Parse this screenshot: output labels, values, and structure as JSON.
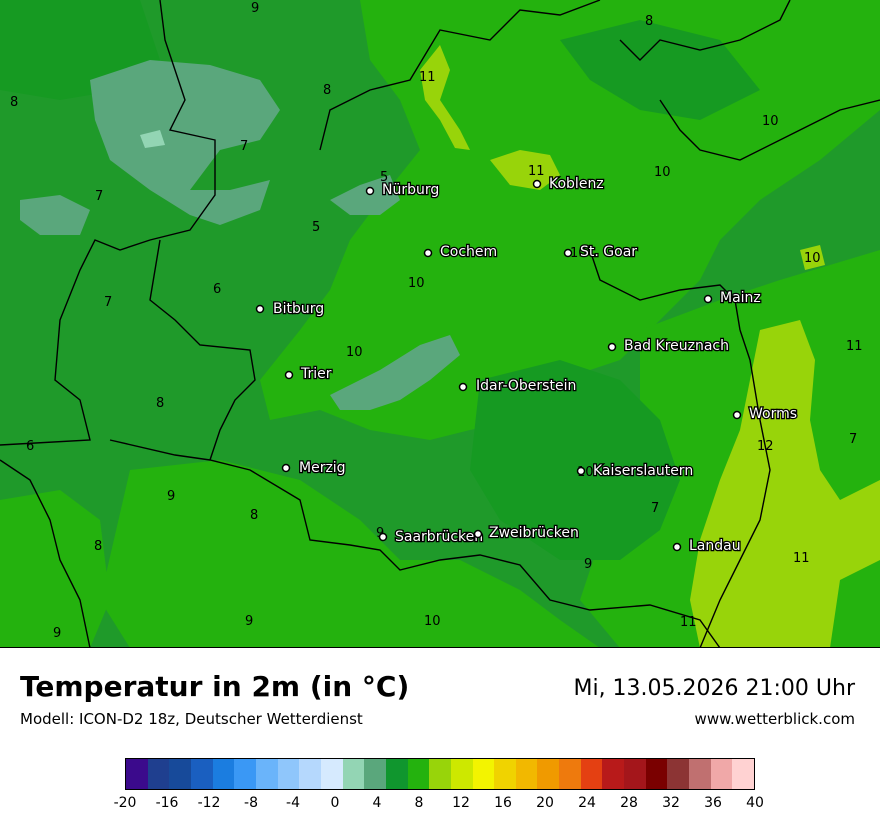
{
  "title": "Temperatur in 2m (in °C)",
  "model": "Modell: ICON-D2 18z, Deutscher Wetterdienst",
  "datetime": "Mi, 13.05.2026 21:00 Uhr",
  "website": "www.wetterblick.com",
  "cities": [
    {
      "name": "Nürburg"
    },
    {
      "name": "Koblenz"
    },
    {
      "name": "Cochem"
    },
    {
      "name": "St. Goar"
    },
    {
      "name": "Mainz"
    },
    {
      "name": "Bitburg"
    },
    {
      "name": "Bad Kreuznach"
    },
    {
      "name": "Trier"
    },
    {
      "name": "Idar-Oberstein"
    },
    {
      "name": "Worms"
    },
    {
      "name": "Merzig"
    },
    {
      "name": "Kaiserslautern"
    },
    {
      "name": "Saarbrücken"
    },
    {
      "name": "Zweibrücken"
    },
    {
      "name": "Landau"
    }
  ],
  "isotherm_labels": [
    "9",
    "8",
    "8",
    "11",
    "8",
    "7",
    "10",
    "5",
    "7",
    "11",
    "10",
    "5",
    "10",
    "10",
    "7",
    "6",
    "10",
    "11",
    "10",
    "8",
    "6",
    "7",
    "12",
    "9",
    "8",
    "7",
    "9",
    "8",
    "9",
    "10",
    "11",
    "9",
    "9",
    "10",
    "11"
  ],
  "colorbar": {
    "colors": [
      "#3b0a8c",
      "#1f3f8f",
      "#174a9a",
      "#1a5fc0",
      "#1b7de0",
      "#3a98f5",
      "#6ab4fa",
      "#8fc6fb",
      "#b5d8fd",
      "#d6eafe",
      "#93d5b4",
      "#5aa77c",
      "#10962e",
      "#24b20e",
      "#98d40a",
      "#cde800",
      "#f3f400",
      "#f0d300",
      "#f2b800",
      "#f09a00",
      "#ee7a0d",
      "#e44012",
      "#b81a1a",
      "#a4161b",
      "#7a0000",
      "#8c3434",
      "#c07070",
      "#f0a8a8",
      "#ffd2d2"
    ],
    "tick_labels": [
      "-20",
      "-16",
      "-12",
      "-8",
      "-4",
      "0",
      "4",
      "8",
      "12",
      "16",
      "20",
      "24",
      "28",
      "32",
      "36",
      "40"
    ]
  }
}
